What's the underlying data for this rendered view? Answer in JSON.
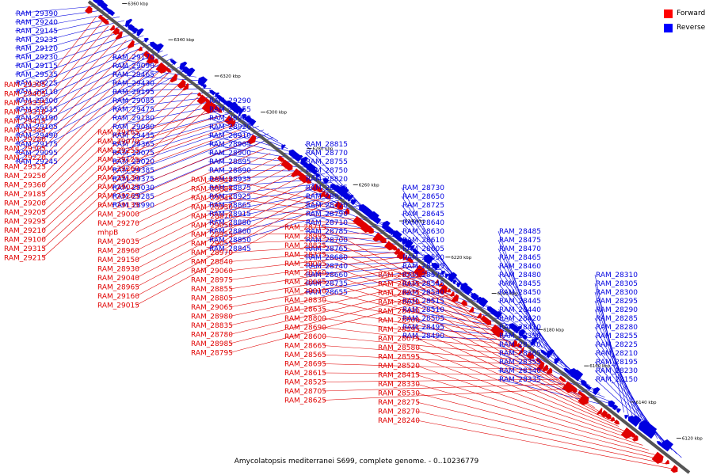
{
  "caption": "Amycolatopsis mediterranei S699, complete genome. - 0..10236779",
  "legend": {
    "items": [
      {
        "label": "Forward",
        "color": "#ff0000"
      },
      {
        "label": "Reverse",
        "color": "#0000ff"
      }
    ]
  },
  "colors": {
    "forward": "#e00000",
    "reverse": "#0000e0",
    "backbone": "#555555"
  },
  "axis": {
    "start_kbp": 6110,
    "end_kbp": 6370,
    "ticks": [
      {
        "label": "6360 kbp",
        "kbp": 6360
      },
      {
        "label": "6340 kbp",
        "kbp": 6340
      },
      {
        "label": "6320 kbp",
        "kbp": 6320
      },
      {
        "label": "6300 kbp",
        "kbp": 6300
      },
      {
        "label": "6280 kbp",
        "kbp": 6280
      },
      {
        "label": "6260 kbp",
        "kbp": 6260
      },
      {
        "label": "6240 kbp",
        "kbp": 6240
      },
      {
        "label": "6220 kbp",
        "kbp": 6220
      },
      {
        "label": "6200 kbp",
        "kbp": 6200
      },
      {
        "label": "6180 kbp",
        "kbp": 6180
      },
      {
        "label": "6160 kbp",
        "kbp": 6160
      },
      {
        "label": "6140 kbp",
        "kbp": 6140
      },
      {
        "label": "6120 kbp",
        "kbp": 6120
      }
    ]
  },
  "reverse_labels": [
    "RAM_29390",
    "RAM_29240",
    "RAM_29145",
    "RAM_29235",
    "RAM_29120",
    "RAM_29230",
    "RAM_29115",
    "RAM_29535",
    "RAM_29225",
    "RAM_29110",
    "RAM_29300",
    "RAM_29515",
    "RAM_29190",
    "RAM_29105",
    "RAM_29490",
    "RAM_29175",
    "RAM_29095",
    "RAM_29245",
    "RAM_29170",
    "RAM_29090",
    "RAM_29465",
    "RAM_29430",
    "RAM_29195",
    "RAM_29085",
    "RAM_29475",
    "RAM_29180",
    "RAM_29080",
    "RAM_29435",
    "RAM_29365",
    "RAM_29075",
    "RAM_29020",
    "RAM_29385",
    "RAM_29375",
    "RAM_29030",
    "RAM_29285",
    "RAM_28990",
    "RAM_29290",
    "RAM_29155",
    "RAM_28940",
    "RAM_28920",
    "RAM_28910",
    "RAM_28905",
    "RAM_28900",
    "RAM_28895",
    "RAM_28890",
    "RAM_28935",
    "RAM_28875",
    "RAM_28925",
    "RAM_28865",
    "RAM_28915",
    "RAM_28880",
    "RAM_28860",
    "RAM_28850",
    "RAM_28845",
    "RAM_28815",
    "RAM_28770",
    "RAM_28755",
    "RAM_28750",
    "RAM_28820",
    "RAM_28745",
    "RAM_28810",
    "RAM_28720",
    "RAM_28790",
    "RAM_28710",
    "RAM_28785",
    "RAM_28700",
    "RAM_28765",
    "RAM_28680",
    "RAM_28740",
    "RAM_28660",
    "RAM_28735",
    "RAM_28655",
    "RAM_28730",
    "RAM_28650",
    "RAM_28725",
    "RAM_28645",
    "RAM_28640",
    "RAM_28630",
    "RAM_28610",
    "RAM_28605",
    "RAM_28550",
    "RAM_28535",
    "RAM_28570",
    "RAM_28545",
    "RAM_28540",
    "RAM_28515",
    "RAM_28510",
    "RAM_28505",
    "RAM_28495",
    "RAM_28490",
    "RAM_28485",
    "RAM_28475",
    "RAM_28470",
    "RAM_28465",
    "RAM_28460",
    "RAM_28480",
    "RAM_28455",
    "RAM_28450",
    "RAM_28445",
    "RAM_28440",
    "RAM_28420",
    "RAM_28410",
    "RAM_28390",
    "RAM_28370",
    "RAM_28365",
    "RAM_28355",
    "RAM_28340",
    "RAM_28335",
    "RAM_28310",
    "RAM_28305",
    "RAM_28300",
    "RAM_28295",
    "RAM_28290",
    "RAM_28285",
    "RAM_28280",
    "RAM_28255",
    "RAM_28225",
    "RAM_28210",
    "RAM_28195",
    "RAM_28230",
    "RAM_28150"
  ],
  "forward_labels": [
    "RAM_29395",
    "RAM_29405",
    "RAM_29335",
    "RAM_29310",
    "RAM_29415",
    "RAM_29345",
    "RAM_29280",
    "RAM_29305",
    "RAM_29220",
    "RAM_29325",
    "RAM_29250",
    "RAM_29360",
    "RAM_29185",
    "RAM_29200",
    "RAM_29205",
    "RAM_29295",
    "RAM_29210",
    "RAM_29100",
    "RAM_29315",
    "RAM_29215",
    "RAM_29165",
    "RAM_29070",
    "RAM_29255",
    "RAM_29125",
    "RAM_29260",
    "RAM_29130",
    "RAM_29025",
    "RAM_29265",
    "RAM_29135",
    "RAM_29000",
    "RAM_29270",
    "mhpB",
    "RAM_29035",
    "RAM_28960",
    "RAM_29150",
    "RAM_28930",
    "RAM_29040",
    "RAM_28965",
    "RAM_29160",
    "RAM_29015",
    "RAM_28945",
    "RAM_28885",
    "RAM_29045",
    "RAM_28950",
    "RAM_28870",
    "RAM_29050",
    "RAM_28955",
    "RAM_29055",
    "RAM_28970",
    "RAM_28840",
    "RAM_29060",
    "RAM_28975",
    "RAM_28855",
    "RAM_28805",
    "RAM_29065",
    "RAM_28980",
    "RAM_28835",
    "RAM_28780",
    "RAM_28985",
    "RAM_28795",
    "RAM_28715",
    "RAM_28995",
    "RAM_28825",
    "RAM_28775",
    "RAM_29005",
    "RAM_28760",
    "RAM_28685",
    "RAM_29010",
    "RAM_28830",
    "RAM_28635",
    "RAM_28800",
    "RAM_28690",
    "RAM_28600",
    "RAM_28665",
    "RAM_28565",
    "RAM_28695",
    "RAM_28615",
    "RAM_28525",
    "RAM_28705",
    "RAM_28625",
    "RAM_28555",
    "RAM_28435",
    "RAM_28575",
    "RAM_28670",
    "RAM_28430",
    "RAM_28500",
    "RAM_28395",
    "RAM_28675",
    "RAM_28580",
    "RAM_28595",
    "RAM_28520",
    "RAM_28415",
    "RAM_28330",
    "RAM_28530",
    "RAM_28275",
    "RAM_28270",
    "RAM_28240"
  ]
}
